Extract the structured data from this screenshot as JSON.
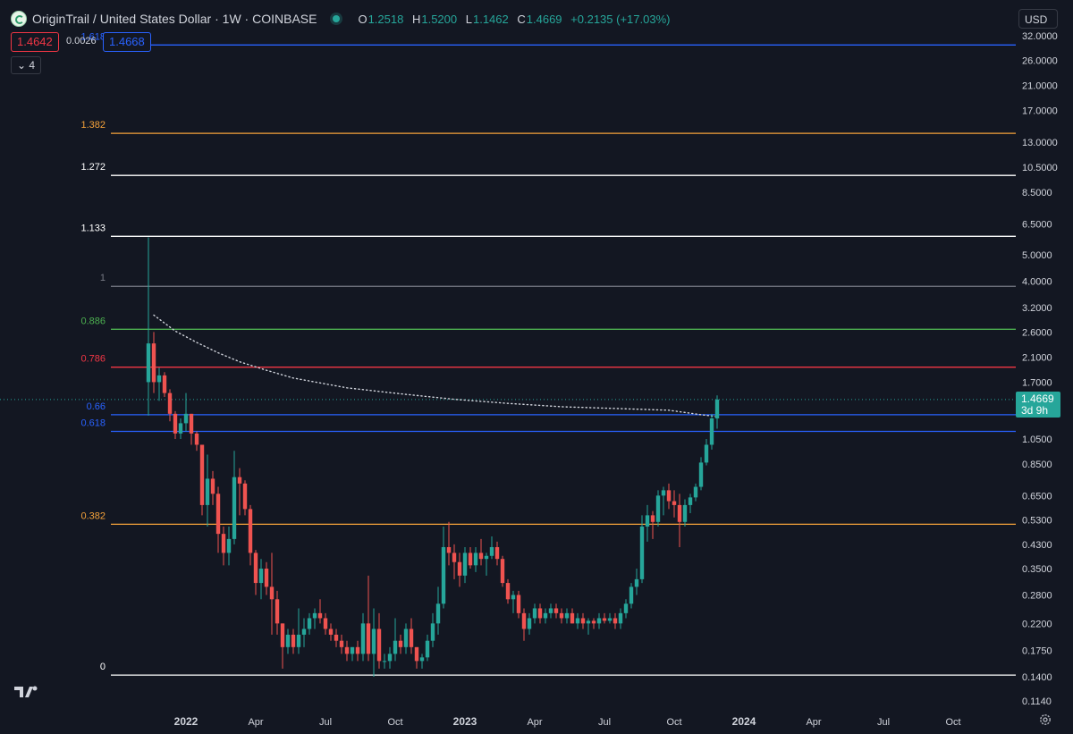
{
  "header": {
    "title": "OriginTrail / United States Dollar · 1W · COINBASE",
    "ohlc": {
      "o_label": "O",
      "o": "1.2518",
      "h_label": "H",
      "h": "1.5200",
      "l_label": "L",
      "l": "1.1462",
      "c_label": "C",
      "c": "1.4669",
      "change": "+0.2135 (+17.03%)"
    }
  },
  "trade": {
    "sell": "1.4642",
    "spread": "0.0026",
    "buy": "1.4668"
  },
  "indicators_collapsed": "4",
  "currency": "USD",
  "last_price": {
    "value": "1.4669",
    "countdown": "3d 9h"
  },
  "colors": {
    "bg": "#131722",
    "up": "#26a69a",
    "down": "#ef5350",
    "blue": "#2962ff",
    "orange": "#f5a23a",
    "green": "#4caf50",
    "red": "#f23645",
    "white": "#ffffff",
    "gray": "#787b86"
  },
  "chart_data": {
    "type": "candlestick",
    "scale": "log",
    "x_ticks": [
      {
        "label": "2022",
        "t": 0,
        "bold": true
      },
      {
        "label": "Apr",
        "t": 13
      },
      {
        "label": "Jul",
        "t": 26
      },
      {
        "label": "Oct",
        "t": 39
      },
      {
        "label": "2023",
        "t": 52,
        "bold": true
      },
      {
        "label": "Apr",
        "t": 65
      },
      {
        "label": "Jul",
        "t": 78
      },
      {
        "label": "Oct",
        "t": 91
      },
      {
        "label": "2024",
        "t": 104,
        "bold": true
      },
      {
        "label": "Apr",
        "t": 117
      },
      {
        "label": "Jul",
        "t": 130
      },
      {
        "label": "Oct",
        "t": 143
      }
    ],
    "y_ticks": [
      "32.0000",
      "26.0000",
      "21.0000",
      "17.0000",
      "13.0000",
      "10.5000",
      "8.5000",
      "6.5000",
      "5.0000",
      "4.0000",
      "3.2000",
      "2.6000",
      "2.1000",
      "1.7000",
      "1.0500",
      "0.8500",
      "0.6500",
      "0.5300",
      "0.4300",
      "0.3500",
      "0.2800",
      "0.2200",
      "0.1750",
      "0.1400",
      "0.1140"
    ],
    "fib_levels": [
      {
        "label": "1.618",
        "price": 29.6,
        "color": "blue"
      },
      {
        "label": "1.382",
        "price": 14.0,
        "color": "orange"
      },
      {
        "label": "1.272",
        "price": 9.8,
        "color": "white"
      },
      {
        "label": "1.133",
        "price": 5.85,
        "color": "white"
      },
      {
        "label": "1",
        "price": 3.83,
        "color": "gray"
      },
      {
        "label": "0.886",
        "price": 2.66,
        "color": "green"
      },
      {
        "label": "0.786",
        "price": 1.93,
        "color": "red"
      },
      {
        "label": "0.66",
        "price": 1.29,
        "color": "blue"
      },
      {
        "label": "0.618",
        "price": 1.12,
        "color": "blue"
      },
      {
        "label": "0.382",
        "price": 0.51,
        "color": "orange"
      },
      {
        "label": "0",
        "price": 0.142,
        "color": "white"
      }
    ],
    "candles": [
      [
        -7,
        1.7,
        5.8,
        1.28,
        2.36
      ],
      [
        -6,
        2.36,
        2.6,
        1.55,
        1.7
      ],
      [
        -5,
        1.7,
        1.92,
        1.45,
        1.8
      ],
      [
        -4,
        1.8,
        1.85,
        1.5,
        1.55
      ],
      [
        -3,
        1.55,
        1.6,
        1.22,
        1.3
      ],
      [
        -2,
        1.3,
        1.33,
        1.05,
        1.1
      ],
      [
        -1,
        1.1,
        1.25,
        1.05,
        1.2
      ],
      [
        0,
        1.2,
        1.55,
        1.12,
        1.3
      ],
      [
        1,
        1.3,
        1.3,
        1.0,
        1.1
      ],
      [
        2,
        1.1,
        1.12,
        0.95,
        1.0
      ],
      [
        3,
        1.0,
        1.0,
        0.55,
        0.6
      ],
      [
        4,
        0.6,
        0.92,
        0.5,
        0.75
      ],
      [
        5,
        0.75,
        0.8,
        0.6,
        0.66
      ],
      [
        6,
        0.66,
        0.7,
        0.4,
        0.47
      ],
      [
        7,
        0.47,
        0.5,
        0.36,
        0.4
      ],
      [
        8,
        0.4,
        0.5,
        0.36,
        0.45
      ],
      [
        9,
        0.45,
        0.95,
        0.43,
        0.76
      ],
      [
        10,
        0.76,
        0.82,
        0.55,
        0.72
      ],
      [
        11,
        0.72,
        0.74,
        0.55,
        0.58
      ],
      [
        12,
        0.58,
        0.6,
        0.36,
        0.4
      ],
      [
        13,
        0.4,
        0.41,
        0.28,
        0.31
      ],
      [
        14,
        0.31,
        0.38,
        0.27,
        0.35
      ],
      [
        15,
        0.35,
        0.37,
        0.28,
        0.3
      ],
      [
        16,
        0.3,
        0.4,
        0.2,
        0.27
      ],
      [
        17,
        0.27,
        0.29,
        0.2,
        0.22
      ],
      [
        18,
        0.22,
        0.22,
        0.15,
        0.18
      ],
      [
        19,
        0.18,
        0.21,
        0.17,
        0.2
      ],
      [
        20,
        0.2,
        0.21,
        0.17,
        0.18
      ],
      [
        21,
        0.18,
        0.25,
        0.17,
        0.2
      ],
      [
        22,
        0.2,
        0.23,
        0.18,
        0.21
      ],
      [
        23,
        0.21,
        0.24,
        0.2,
        0.23
      ],
      [
        24,
        0.23,
        0.25,
        0.21,
        0.24
      ],
      [
        25,
        0.24,
        0.27,
        0.22,
        0.23
      ],
      [
        26,
        0.23,
        0.24,
        0.2,
        0.21
      ],
      [
        27,
        0.21,
        0.22,
        0.19,
        0.2
      ],
      [
        28,
        0.2,
        0.21,
        0.18,
        0.19
      ],
      [
        29,
        0.19,
        0.2,
        0.17,
        0.18
      ],
      [
        30,
        0.18,
        0.19,
        0.16,
        0.17
      ],
      [
        31,
        0.17,
        0.18,
        0.16,
        0.18
      ],
      [
        32,
        0.18,
        0.19,
        0.16,
        0.17
      ],
      [
        33,
        0.17,
        0.24,
        0.16,
        0.22
      ],
      [
        34,
        0.22,
        0.33,
        0.16,
        0.17
      ],
      [
        35,
        0.17,
        0.25,
        0.14,
        0.21
      ],
      [
        36,
        0.21,
        0.24,
        0.15,
        0.16
      ],
      [
        37,
        0.16,
        0.17,
        0.15,
        0.16
      ],
      [
        38,
        0.16,
        0.18,
        0.15,
        0.17
      ],
      [
        39,
        0.17,
        0.23,
        0.16,
        0.19
      ],
      [
        40,
        0.19,
        0.2,
        0.17,
        0.18
      ],
      [
        41,
        0.18,
        0.22,
        0.17,
        0.21
      ],
      [
        42,
        0.21,
        0.23,
        0.17,
        0.18
      ],
      [
        43,
        0.18,
        0.18,
        0.15,
        0.16
      ],
      [
        44,
        0.16,
        0.17,
        0.15,
        0.165
      ],
      [
        45,
        0.165,
        0.2,
        0.16,
        0.19
      ],
      [
        46,
        0.19,
        0.24,
        0.18,
        0.22
      ],
      [
        47,
        0.22,
        0.3,
        0.2,
        0.26
      ],
      [
        48,
        0.26,
        0.5,
        0.25,
        0.42
      ],
      [
        49,
        0.42,
        0.52,
        0.36,
        0.4
      ],
      [
        50,
        0.4,
        0.43,
        0.32,
        0.37
      ],
      [
        51,
        0.37,
        0.4,
        0.3,
        0.33
      ],
      [
        52,
        0.33,
        0.42,
        0.31,
        0.4
      ],
      [
        53,
        0.4,
        0.42,
        0.35,
        0.36
      ],
      [
        54,
        0.36,
        0.42,
        0.34,
        0.4
      ],
      [
        55,
        0.4,
        0.45,
        0.36,
        0.38
      ],
      [
        56,
        0.38,
        0.4,
        0.33,
        0.39
      ],
      [
        57,
        0.39,
        0.46,
        0.38,
        0.42
      ],
      [
        58,
        0.42,
        0.44,
        0.36,
        0.38
      ],
      [
        59,
        0.38,
        0.39,
        0.3,
        0.31
      ],
      [
        60,
        0.31,
        0.32,
        0.26,
        0.27
      ],
      [
        61,
        0.27,
        0.29,
        0.24,
        0.28
      ],
      [
        62,
        0.28,
        0.29,
        0.23,
        0.24
      ],
      [
        63,
        0.24,
        0.25,
        0.19,
        0.21
      ],
      [
        64,
        0.21,
        0.24,
        0.2,
        0.23
      ],
      [
        65,
        0.23,
        0.26,
        0.22,
        0.25
      ],
      [
        66,
        0.25,
        0.26,
        0.22,
        0.23
      ],
      [
        67,
        0.23,
        0.25,
        0.22,
        0.24
      ],
      [
        68,
        0.24,
        0.26,
        0.23,
        0.25
      ],
      [
        69,
        0.25,
        0.26,
        0.23,
        0.24
      ],
      [
        70,
        0.24,
        0.25,
        0.22,
        0.23
      ],
      [
        71,
        0.23,
        0.25,
        0.22,
        0.24
      ],
      [
        72,
        0.24,
        0.25,
        0.22,
        0.22
      ],
      [
        73,
        0.22,
        0.24,
        0.21,
        0.23
      ],
      [
        74,
        0.23,
        0.24,
        0.21,
        0.22
      ],
      [
        75,
        0.22,
        0.23,
        0.2,
        0.225
      ],
      [
        76,
        0.225,
        0.23,
        0.21,
        0.22
      ],
      [
        77,
        0.22,
        0.24,
        0.21,
        0.23
      ],
      [
        78,
        0.23,
        0.24,
        0.22,
        0.225
      ],
      [
        79,
        0.225,
        0.24,
        0.22,
        0.23
      ],
      [
        80,
        0.23,
        0.24,
        0.21,
        0.22
      ],
      [
        81,
        0.22,
        0.25,
        0.21,
        0.24
      ],
      [
        82,
        0.24,
        0.27,
        0.23,
        0.26
      ],
      [
        83,
        0.26,
        0.31,
        0.25,
        0.3
      ],
      [
        84,
        0.3,
        0.35,
        0.28,
        0.32
      ],
      [
        85,
        0.32,
        0.55,
        0.31,
        0.5
      ],
      [
        86,
        0.5,
        0.6,
        0.44,
        0.55
      ],
      [
        87,
        0.55,
        0.57,
        0.45,
        0.52
      ],
      [
        88,
        0.52,
        0.68,
        0.5,
        0.65
      ],
      [
        89,
        0.65,
        0.7,
        0.55,
        0.68
      ],
      [
        90,
        0.68,
        0.72,
        0.58,
        0.62
      ],
      [
        91,
        0.62,
        0.68,
        0.54,
        0.6
      ],
      [
        92,
        0.6,
        0.66,
        0.42,
        0.52
      ],
      [
        93,
        0.52,
        0.63,
        0.5,
        0.6
      ],
      [
        94,
        0.6,
        0.66,
        0.56,
        0.64
      ],
      [
        95,
        0.64,
        0.72,
        0.62,
        0.7
      ],
      [
        96,
        0.7,
        0.9,
        0.68,
        0.86
      ],
      [
        97,
        0.86,
        1.05,
        0.84,
        1.0
      ],
      [
        98,
        1.0,
        1.3,
        0.96,
        1.25
      ],
      [
        99,
        1.25,
        1.52,
        1.146,
        1.4669
      ]
    ],
    "vwap_curve": [
      [
        -6,
        3.0
      ],
      [
        -2,
        2.62
      ],
      [
        2,
        2.38
      ],
      [
        6,
        2.18
      ],
      [
        10,
        2.02
      ],
      [
        15,
        1.88
      ],
      [
        20,
        1.76
      ],
      [
        30,
        1.62
      ],
      [
        40,
        1.54
      ],
      [
        50,
        1.47
      ],
      [
        60,
        1.42
      ],
      [
        70,
        1.38
      ],
      [
        80,
        1.36
      ],
      [
        90,
        1.34
      ],
      [
        96,
        1.29
      ],
      [
        99,
        1.27
      ]
    ]
  }
}
